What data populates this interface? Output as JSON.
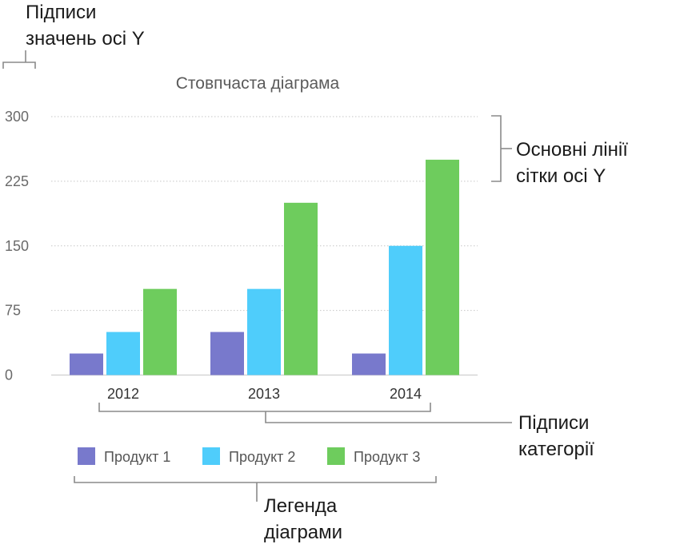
{
  "chart_data": {
    "type": "bar",
    "title": "Стовпчаста діаграма",
    "categories": [
      "2012",
      "2013",
      "2014"
    ],
    "series": [
      {
        "name": "Продукт 1",
        "color": "#7879cc",
        "values": [
          25,
          50,
          25
        ]
      },
      {
        "name": "Продукт 2",
        "color": "#4fcdfb",
        "values": [
          50,
          100,
          150
        ]
      },
      {
        "name": "Продукт 3",
        "color": "#6ecc5d",
        "values": [
          100,
          200,
          250
        ]
      }
    ],
    "yticks": [
      0,
      75,
      150,
      225,
      300
    ],
    "ylim": [
      0,
      300
    ],
    "grid": true,
    "legend_position": "bottom"
  },
  "annotations": {
    "y_value_labels": [
      "Підписи",
      "значень осі Y"
    ],
    "y_gridlines": [
      "Основні лінії",
      "сітки осі Y"
    ],
    "category_labels": [
      "Підписи",
      "категорії"
    ],
    "legend": [
      "Легенда",
      "діаграми"
    ]
  }
}
